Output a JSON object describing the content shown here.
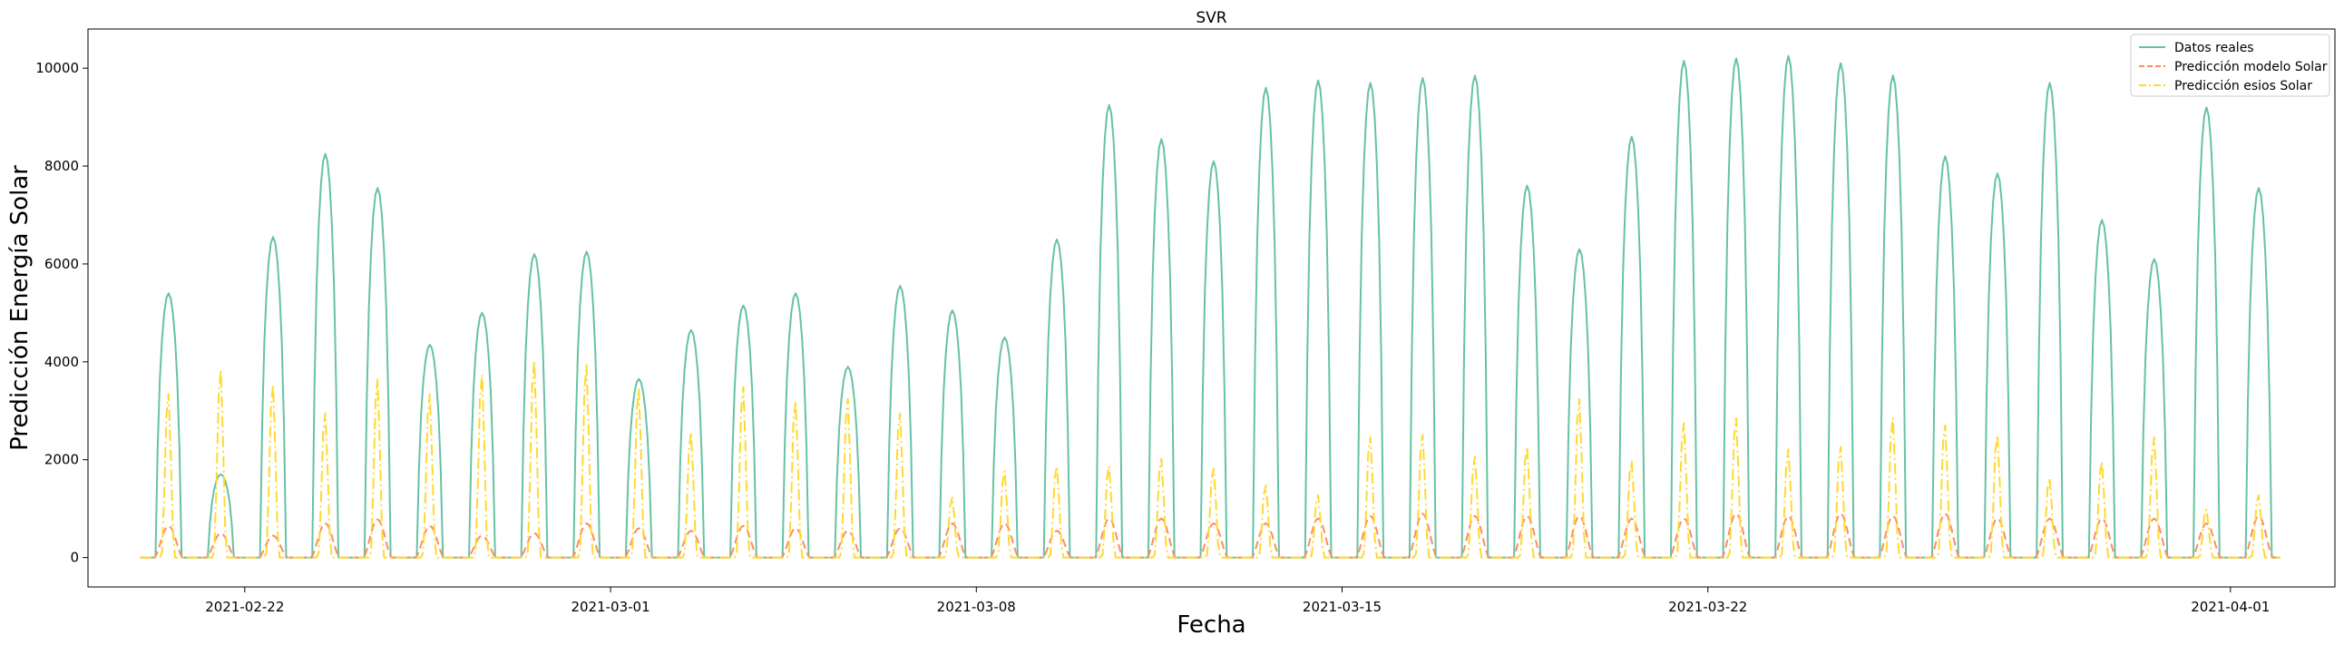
{
  "chart_data": {
    "type": "line",
    "title": "SVR",
    "xlabel": "Fecha",
    "ylabel": "Predicción Energía Solar",
    "x_start": "2021-02-20",
    "x_end": "2021-04-02",
    "xlim": [
      "2021-02-19",
      "2021-04-03"
    ],
    "ylim": [
      -600,
      10800
    ],
    "x_ticks": [
      "2021-02-22",
      "2021-03-01",
      "2021-03-08",
      "2021-03-15",
      "2021-03-22",
      "2021-04-01"
    ],
    "y_ticks": [
      0,
      2000,
      4000,
      6000,
      8000,
      10000
    ],
    "grid": false,
    "legend_position": "top-right",
    "series": [
      {
        "name": "Datos reales",
        "color": "#66c2a5",
        "style": "solid",
        "daily_peaks": [
          5400,
          1700,
          6550,
          8250,
          7550,
          4350,
          5000,
          6200,
          6250,
          3650,
          4650,
          5150,
          5400,
          3900,
          5550,
          5050,
          4500,
          6500,
          9250,
          8550,
          8100,
          9600,
          9750,
          9700,
          9800,
          9850,
          7600,
          6300,
          8600,
          10150,
          10200,
          10250,
          10100,
          9850,
          8200,
          7850,
          9700,
          6900,
          6100,
          9200,
          7550
        ]
      },
      {
        "name": "Predicción modelo Solar",
        "color": "#fc8d62",
        "style": "dashed",
        "daily_peaks": [
          650,
          500,
          450,
          700,
          780,
          650,
          450,
          500,
          700,
          600,
          550,
          650,
          600,
          550,
          600,
          700,
          700,
          550,
          800,
          800,
          700,
          700,
          800,
          850,
          900,
          850,
          850,
          850,
          800,
          800,
          900,
          850,
          900,
          850,
          900,
          800,
          800,
          800,
          800,
          700,
          850
        ]
      },
      {
        "name": "Predicción esios Solar",
        "color": "#ffd92f",
        "style": "dashdot",
        "daily_peaks": [
          3400,
          3900,
          3600,
          3000,
          3700,
          3400,
          3800,
          4100,
          4000,
          3500,
          2600,
          3550,
          3250,
          3300,
          3000,
          1250,
          1800,
          1900,
          1900,
          2050,
          1850,
          1500,
          1300,
          2500,
          2550,
          2100,
          2300,
          3300,
          2000,
          2800,
          2900,
          2250,
          2300,
          2900,
          2750,
          2550,
          1650,
          2000,
          2500,
          1000,
          1300
        ]
      }
    ]
  }
}
